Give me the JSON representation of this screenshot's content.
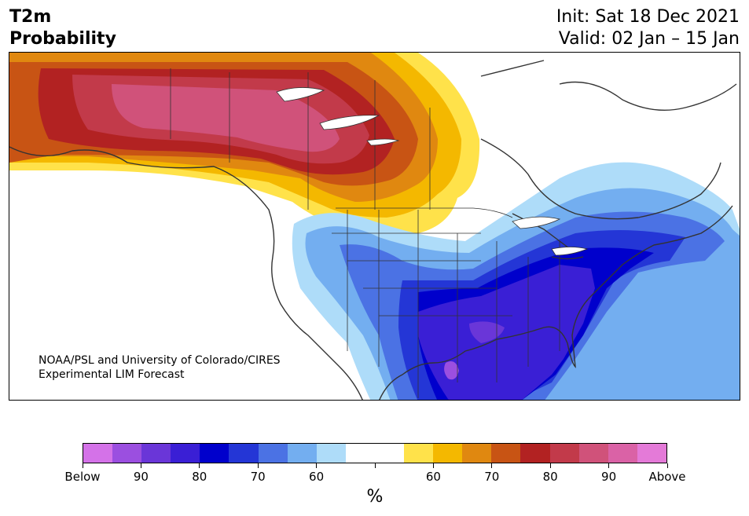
{
  "title": {
    "line1": "T2m",
    "line2": "Probability"
  },
  "init_label": "Init: Sat 18 Dec 2021",
  "valid_label": "Valid: 02 Jan – 15 Jan",
  "credit": {
    "line1": "NOAA/PSL and University of Colorado/CIRES",
    "line2": "Experimental LIM Forecast"
  },
  "colorbar": {
    "unit": "%",
    "colors": [
      "#d472e8",
      "#9b4fe0",
      "#6a36d8",
      "#3a1fd5",
      "#0000cc",
      "#2436d6",
      "#4b72e4",
      "#73aef0",
      "#aedcf9",
      "#ffffff",
      "#ffffff",
      "#ffe24a",
      "#f4b800",
      "#e08810",
      "#c85414",
      "#b22222",
      "#c23a4a",
      "#d0527a",
      "#da62a6",
      "#e47ad8"
    ],
    "labels": [
      "Below",
      "90",
      "80",
      "70",
      "60",
      "",
      "60",
      "70",
      "80",
      "90",
      "Above"
    ]
  },
  "map": {
    "colors": {
      "warm_peak": "#d0527a",
      "warm_90": "#c23a4a",
      "warm_80": "#b22222",
      "warm_70": "#c85414",
      "warm_60": "#e08810",
      "warm_55": "#f4b800",
      "warm_50": "#ffe24a",
      "cold_50": "#aedcf9",
      "cold_60": "#73aef0",
      "cold_70": "#4b72e4",
      "cold_75": "#2436d6",
      "cold_80": "#0000cc",
      "cold_85": "#3a1fd5",
      "cold_90": "#6a36d8",
      "cold_peak": "#9b4fe0"
    }
  }
}
